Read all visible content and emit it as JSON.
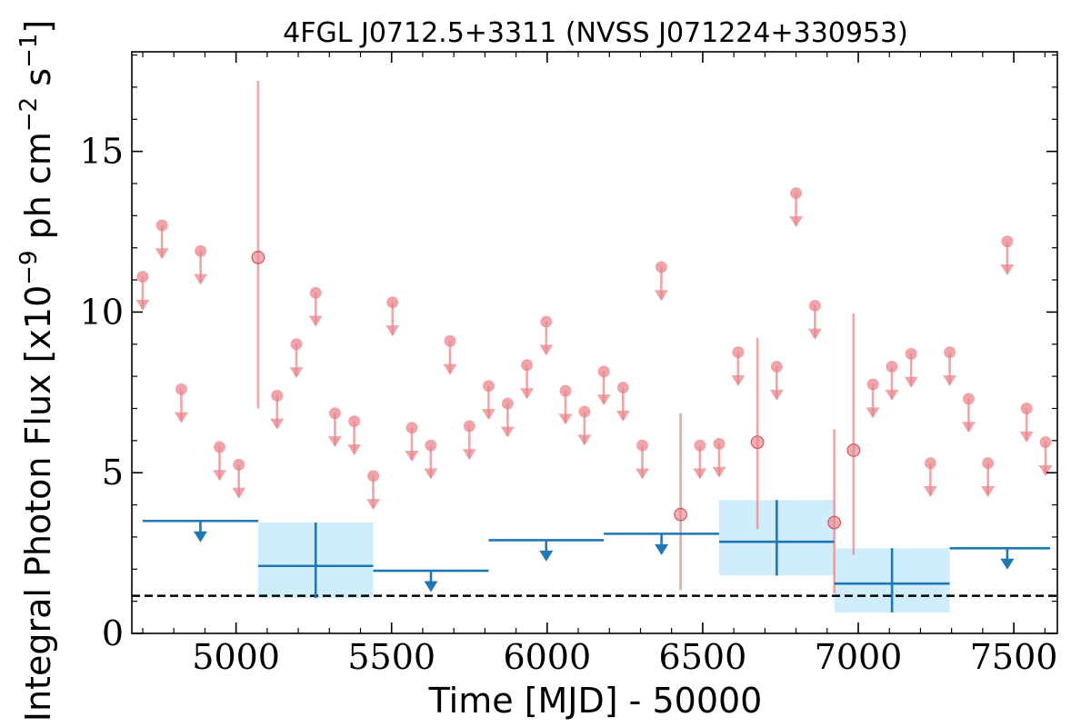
{
  "chart_data": {
    "type": "scatter",
    "title": "4FGL J0712.5+3311 (NVSS J071224+330953)",
    "xlabel": "Time [MJD] - 50000",
    "ylabel_prefix": "Integral Photon Flux [x10",
    "ylabel_exp1": "−9",
    "ylabel_mid": " ph cm",
    "ylabel_exp2": "−2",
    "ylabel_mid2": " s",
    "ylabel_exp3": "−1",
    "ylabel_suffix": "]",
    "xlim": [
      4665,
      7640
    ],
    "ylim": [
      0,
      18.1
    ],
    "xticks": [
      {
        "value": 5000,
        "label": "5000"
      },
      {
        "value": 5500,
        "label": "5500"
      },
      {
        "value": 6000,
        "label": "6000"
      },
      {
        "value": 6500,
        "label": "6500"
      },
      {
        "value": 7000,
        "label": "7000"
      },
      {
        "value": 7500,
        "label": "7500"
      }
    ],
    "yticks": [
      {
        "value": 0,
        "label": "0"
      },
      {
        "value": 5,
        "label": "5"
      },
      {
        "value": 10,
        "label": "10"
      },
      {
        "value": 15,
        "label": "15"
      }
    ],
    "x_minor_step": 100,
    "y_minor_step": 1,
    "reference_line": {
      "y": 1.17,
      "style": "dashed",
      "color": "#000000"
    },
    "colors": {
      "short_bins": "#e8868c",
      "long_bins": "#1f77b4",
      "long_bins_fill": "#d0edfb"
    },
    "series": [
      {
        "kind": "short_bins_upper_limits",
        "points": [
          {
            "x": 4700,
            "y": 11.1
          },
          {
            "x": 4762,
            "y": 12.7
          },
          {
            "x": 4824,
            "y": 7.6
          },
          {
            "x": 4886,
            "y": 11.9
          },
          {
            "x": 4947,
            "y": 5.8
          },
          {
            "x": 5009,
            "y": 5.25
          },
          {
            "x": 5132,
            "y": 7.4
          },
          {
            "x": 5194,
            "y": 9.0
          },
          {
            "x": 5256,
            "y": 10.6
          },
          {
            "x": 5318,
            "y": 6.85
          },
          {
            "x": 5380,
            "y": 6.6
          },
          {
            "x": 5441,
            "y": 4.9
          },
          {
            "x": 5503,
            "y": 10.3
          },
          {
            "x": 5565,
            "y": 6.4
          },
          {
            "x": 5626,
            "y": 5.85
          },
          {
            "x": 5688,
            "y": 9.1
          },
          {
            "x": 5750,
            "y": 6.45
          },
          {
            "x": 5812,
            "y": 7.7
          },
          {
            "x": 5873,
            "y": 7.15
          },
          {
            "x": 5935,
            "y": 8.35
          },
          {
            "x": 5997,
            "y": 9.7
          },
          {
            "x": 6059,
            "y": 7.55
          },
          {
            "x": 6120,
            "y": 6.9
          },
          {
            "x": 6182,
            "y": 8.15
          },
          {
            "x": 6244,
            "y": 7.65
          },
          {
            "x": 6306,
            "y": 5.85
          },
          {
            "x": 6367,
            "y": 11.4
          },
          {
            "x": 6491,
            "y": 5.85
          },
          {
            "x": 6553,
            "y": 5.9
          },
          {
            "x": 6614,
            "y": 8.75
          },
          {
            "x": 6738,
            "y": 8.3
          },
          {
            "x": 6800,
            "y": 13.7
          },
          {
            "x": 6861,
            "y": 10.2
          },
          {
            "x": 7047,
            "y": 7.75
          },
          {
            "x": 7108,
            "y": 8.3
          },
          {
            "x": 7170,
            "y": 8.7
          },
          {
            "x": 7232,
            "y": 5.3
          },
          {
            "x": 7294,
            "y": 8.75
          },
          {
            "x": 7355,
            "y": 7.3
          },
          {
            "x": 7417,
            "y": 5.3
          },
          {
            "x": 7479,
            "y": 12.2
          },
          {
            "x": 7541,
            "y": 7.0
          },
          {
            "x": 7602,
            "y": 5.95
          }
        ]
      },
      {
        "kind": "short_bins_detections",
        "points": [
          {
            "x": 5071,
            "y": 11.7,
            "ylow": 7.0,
            "yhigh": 17.2
          },
          {
            "x": 6429,
            "y": 3.7,
            "ylow": 1.35,
            "yhigh": 6.85
          },
          {
            "x": 6676,
            "y": 5.95,
            "ylow": 3.25,
            "yhigh": 9.2
          },
          {
            "x": 6923,
            "y": 3.45,
            "ylow": 1.25,
            "yhigh": 6.35
          },
          {
            "x": 6985,
            "y": 5.7,
            "ylow": 2.45,
            "yhigh": 9.95
          }
        ]
      },
      {
        "kind": "long_bins_upper_limits",
        "bins": [
          {
            "xmin": 4700,
            "xmax": 5071,
            "y": 3.5
          },
          {
            "xmin": 5441,
            "xmax": 5812,
            "y": 1.95
          },
          {
            "xmin": 5812,
            "xmax": 6182,
            "y": 2.9
          },
          {
            "xmin": 6182,
            "xmax": 6553,
            "y": 3.1
          },
          {
            "xmin": 7294,
            "xmax": 7664,
            "y": 2.65
          }
        ]
      },
      {
        "kind": "long_bins_detections",
        "bins": [
          {
            "xmin": 5071,
            "xmax": 5441,
            "y": 2.1,
            "ylow": 1.1,
            "yhigh": 3.45
          },
          {
            "xmin": 6553,
            "xmax": 6923,
            "y": 2.85,
            "ylow": 1.8,
            "yhigh": 4.15
          },
          {
            "xmin": 6923,
            "xmax": 7294,
            "y": 1.55,
            "ylow": 0.65,
            "yhigh": 2.65
          }
        ]
      }
    ]
  }
}
